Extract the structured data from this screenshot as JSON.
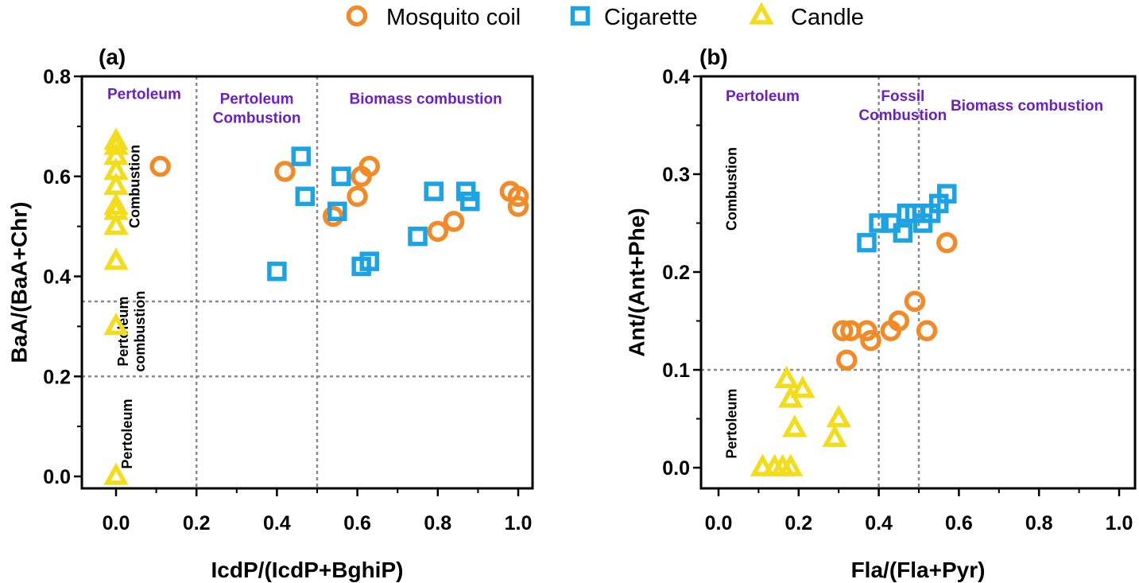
{
  "legend": [
    {
      "label": "Mosquito coil",
      "marker": "circle",
      "color": "#f28a28"
    },
    {
      "label": "Cigarette",
      "marker": "square",
      "color": "#1ca3e3"
    },
    {
      "label": "Candle",
      "marker": "triangle",
      "color": "#f3dc1a"
    }
  ],
  "colors": {
    "region_text": "#6a1fc8",
    "guide": "#8a8a8a"
  },
  "chart_data": [
    {
      "type": "scatter",
      "panel": "(a)",
      "xlabel": "IcdP/(IcdP+BghiP)",
      "ylabel": "BaA/(BaA+Chr)",
      "xlim": [
        -0.04,
        1.04
      ],
      "ylim": [
        -0.02,
        0.8
      ],
      "xticks": [
        "0.0",
        "0.2",
        "0.4",
        "0.6",
        "0.8",
        "1.0"
      ],
      "yticks": [
        "0.0",
        "0.2",
        "0.4",
        "0.6",
        "0.8"
      ],
      "vlines": [
        0.2,
        0.5
      ],
      "hlines": [
        0.2,
        0.35
      ],
      "region_labels": [
        {
          "text": [
            "Pertoleum"
          ],
          "x": 0.07,
          "y": 0.755
        },
        {
          "text": [
            "Pertoleum",
            "Combustion"
          ],
          "x": 0.35,
          "y": 0.745
        },
        {
          "text": [
            "Biomass combustion"
          ],
          "x": 0.77,
          "y": 0.745
        }
      ],
      "side_labels": [
        {
          "text": [
            "Combustion"
          ],
          "x": 0.058,
          "y": 0.58
        },
        {
          "text": [
            "Pertoleum",
            "combustion"
          ],
          "x": 0.03,
          "y": 0.29
        },
        {
          "text": [
            "Pertoleum"
          ],
          "x": 0.04,
          "y": 0.085
        }
      ],
      "series": [
        {
          "name": "Mosquito coil",
          "points": [
            [
              0.11,
              0.62
            ],
            [
              0.42,
              0.61
            ],
            [
              0.54,
              0.52
            ],
            [
              0.6,
              0.56
            ],
            [
              0.61,
              0.6
            ],
            [
              0.63,
              0.62
            ],
            [
              0.8,
              0.49
            ],
            [
              0.84,
              0.51
            ],
            [
              0.98,
              0.57
            ],
            [
              1.0,
              0.56
            ],
            [
              1.0,
              0.54
            ]
          ]
        },
        {
          "name": "Cigarette",
          "points": [
            [
              0.4,
              0.41
            ],
            [
              0.46,
              0.64
            ],
            [
              0.47,
              0.56
            ],
            [
              0.55,
              0.53
            ],
            [
              0.56,
              0.6
            ],
            [
              0.61,
              0.42
            ],
            [
              0.63,
              0.43
            ],
            [
              0.75,
              0.48
            ],
            [
              0.79,
              0.57
            ],
            [
              0.87,
              0.57
            ],
            [
              0.88,
              0.55
            ]
          ]
        },
        {
          "name": "Candle",
          "points": [
            [
              0.0,
              0.67
            ],
            [
              0.0,
              0.66
            ],
            [
              0.0,
              0.64
            ],
            [
              0.0,
              0.61
            ],
            [
              0.0,
              0.58
            ],
            [
              0.0,
              0.54
            ],
            [
              0.0,
              0.53
            ],
            [
              0.0,
              0.5
            ],
            [
              0.0,
              0.43
            ],
            [
              0.0,
              0.3
            ],
            [
              0.0,
              0.0
            ]
          ]
        }
      ]
    },
    {
      "type": "scatter",
      "panel": "(b)",
      "xlabel": "Fla/(Fla+Pyr)",
      "ylabel": "Ant/(Ant+Phe)",
      "xlim": [
        -0.005,
        1.005
      ],
      "ylim": [
        -0.01,
        0.4
      ],
      "xticks": [
        "0.0",
        "0.2",
        "0.4",
        "0.6",
        "0.8",
        "1.0"
      ],
      "yticks": [
        "0.0",
        "0.1",
        "0.2",
        "0.3",
        "0.4"
      ],
      "vlines": [
        0.4,
        0.5
      ],
      "hlines": [
        0.1
      ],
      "region_labels": [
        {
          "text": [
            "Pertoleum"
          ],
          "x": 0.11,
          "y": 0.375
        },
        {
          "text": [
            "Fossil",
            "Combustion"
          ],
          "x": 0.46,
          "y": 0.375
        },
        {
          "text": [
            "Biomass combustion"
          ],
          "x": 0.77,
          "y": 0.365
        }
      ],
      "side_labels": [
        {
          "text": [
            "Combustion"
          ],
          "x": 0.045,
          "y": 0.285
        },
        {
          "text": [
            "Pertoleum"
          ],
          "x": 0.045,
          "y": 0.045
        }
      ],
      "series": [
        {
          "name": "Mosquito coil",
          "points": [
            [
              0.31,
              0.14
            ],
            [
              0.32,
              0.11
            ],
            [
              0.33,
              0.14
            ],
            [
              0.37,
              0.14
            ],
            [
              0.38,
              0.13
            ],
            [
              0.43,
              0.14
            ],
            [
              0.45,
              0.15
            ],
            [
              0.49,
              0.17
            ],
            [
              0.52,
              0.14
            ],
            [
              0.57,
              0.23
            ]
          ]
        },
        {
          "name": "Cigarette",
          "points": [
            [
              0.37,
              0.23
            ],
            [
              0.4,
              0.25
            ],
            [
              0.43,
              0.25
            ],
            [
              0.46,
              0.24
            ],
            [
              0.47,
              0.26
            ],
            [
              0.49,
              0.26
            ],
            [
              0.51,
              0.25
            ],
            [
              0.53,
              0.26
            ],
            [
              0.55,
              0.27
            ],
            [
              0.57,
              0.28
            ]
          ]
        },
        {
          "name": "Candle",
          "points": [
            [
              0.11,
              0.0
            ],
            [
              0.14,
              0.0
            ],
            [
              0.16,
              0.0
            ],
            [
              0.17,
              0.09
            ],
            [
              0.18,
              0.0
            ],
            [
              0.18,
              0.07
            ],
            [
              0.19,
              0.04
            ],
            [
              0.21,
              0.08
            ],
            [
              0.29,
              0.03
            ],
            [
              0.3,
              0.05
            ]
          ]
        }
      ]
    }
  ]
}
